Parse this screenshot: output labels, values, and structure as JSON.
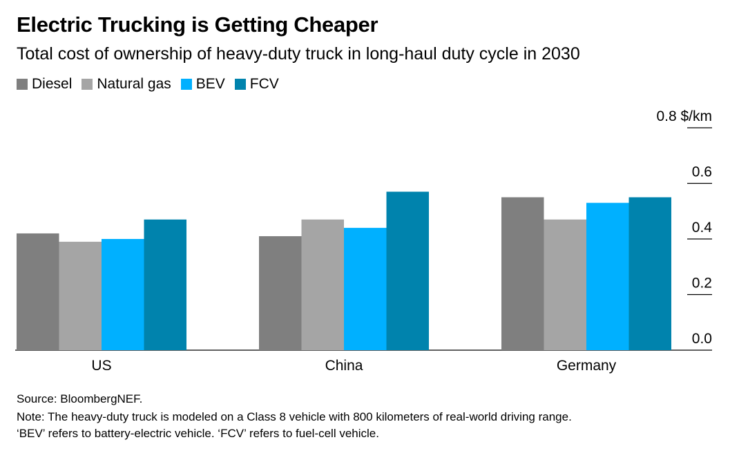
{
  "title": "Electric Trucking is Getting Cheaper",
  "subtitle": "Total cost of ownership of heavy-duty truck in long-haul duty cycle in 2030",
  "source": "Source: BloombergNEF.",
  "note1": "Note: The heavy-duty truck is modeled on a Class 8 vehicle with 800 kilometers of real-world driving range.",
  "note2": "‘BEV’ refers to battery-electric vehicle. ‘FCV’ refers to fuel-cell vehicle.",
  "chart_data": {
    "type": "bar",
    "title": "Electric Trucking is Getting Cheaper",
    "ylabel": "$/km",
    "ylim": [
      0,
      0.8
    ],
    "yticks": [
      "0.0",
      "0.2",
      "0.4",
      "0.6",
      "0.8 $/km"
    ],
    "categories": [
      "US",
      "China",
      "Germany"
    ],
    "legend_position": "top-left",
    "grid": false,
    "series": [
      {
        "name": "Diesel",
        "color": "#7f7f7f",
        "values": [
          0.42,
          0.41,
          0.55
        ]
      },
      {
        "name": "Natural gas",
        "color": "#a5a5a5",
        "values": [
          0.39,
          0.47,
          0.47
        ]
      },
      {
        "name": "BEV",
        "color": "#00b0ff",
        "values": [
          0.4,
          0.44,
          0.53
        ]
      },
      {
        "name": "FCV",
        "color": "#0083ad",
        "values": [
          0.47,
          0.57,
          0.55
        ]
      }
    ]
  }
}
